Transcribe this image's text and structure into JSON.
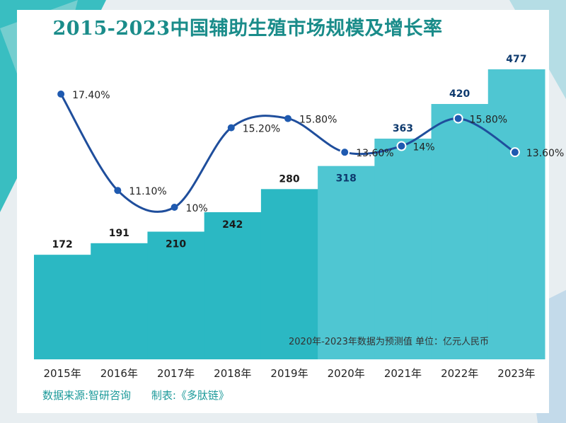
{
  "chart_data": {
    "type": "bar+line",
    "title": "2015-2023中国辅助生殖市场规模及增长率",
    "categories": [
      "2015年",
      "2016年",
      "2017年",
      "2018年",
      "2019年",
      "2020年",
      "2021年",
      "2022年",
      "2023年"
    ],
    "series": [
      {
        "name": "",
        "type": "bar",
        "values": [
          172,
          191,
          210,
          242,
          280,
          318,
          363,
          420,
          477
        ],
        "labels": [
          "172",
          "191",
          "210",
          "242",
          "280",
          "318",
          "363",
          "420",
          "477"
        ]
      },
      {
        "name": "",
        "type": "line",
        "values": [
          17.4,
          11.1,
          10,
          15.2,
          15.8,
          13.6,
          14,
          15.8,
          13.6
        ],
        "labels": [
          "17.40%",
          "11.10%",
          "10%",
          "15.20%",
          "15.80%",
          "13.60%",
          "14%",
          "15.80%",
          "13.60%"
        ]
      }
    ],
    "forecast_from_index": 5,
    "colors": {
      "bar_actual": "#2bb8c3",
      "bar_forecast": "#4fc6d2",
      "line": "#1f4e9c",
      "marker": "#1f5ab0",
      "title": "#1a8c8a",
      "source_text": "#1c9a9a"
    },
    "note": "2020年-2023年数据为预测值   单位：亿元人民币",
    "source": "数据来源:智研咨询",
    "maker": "制表:《多肽链》"
  }
}
